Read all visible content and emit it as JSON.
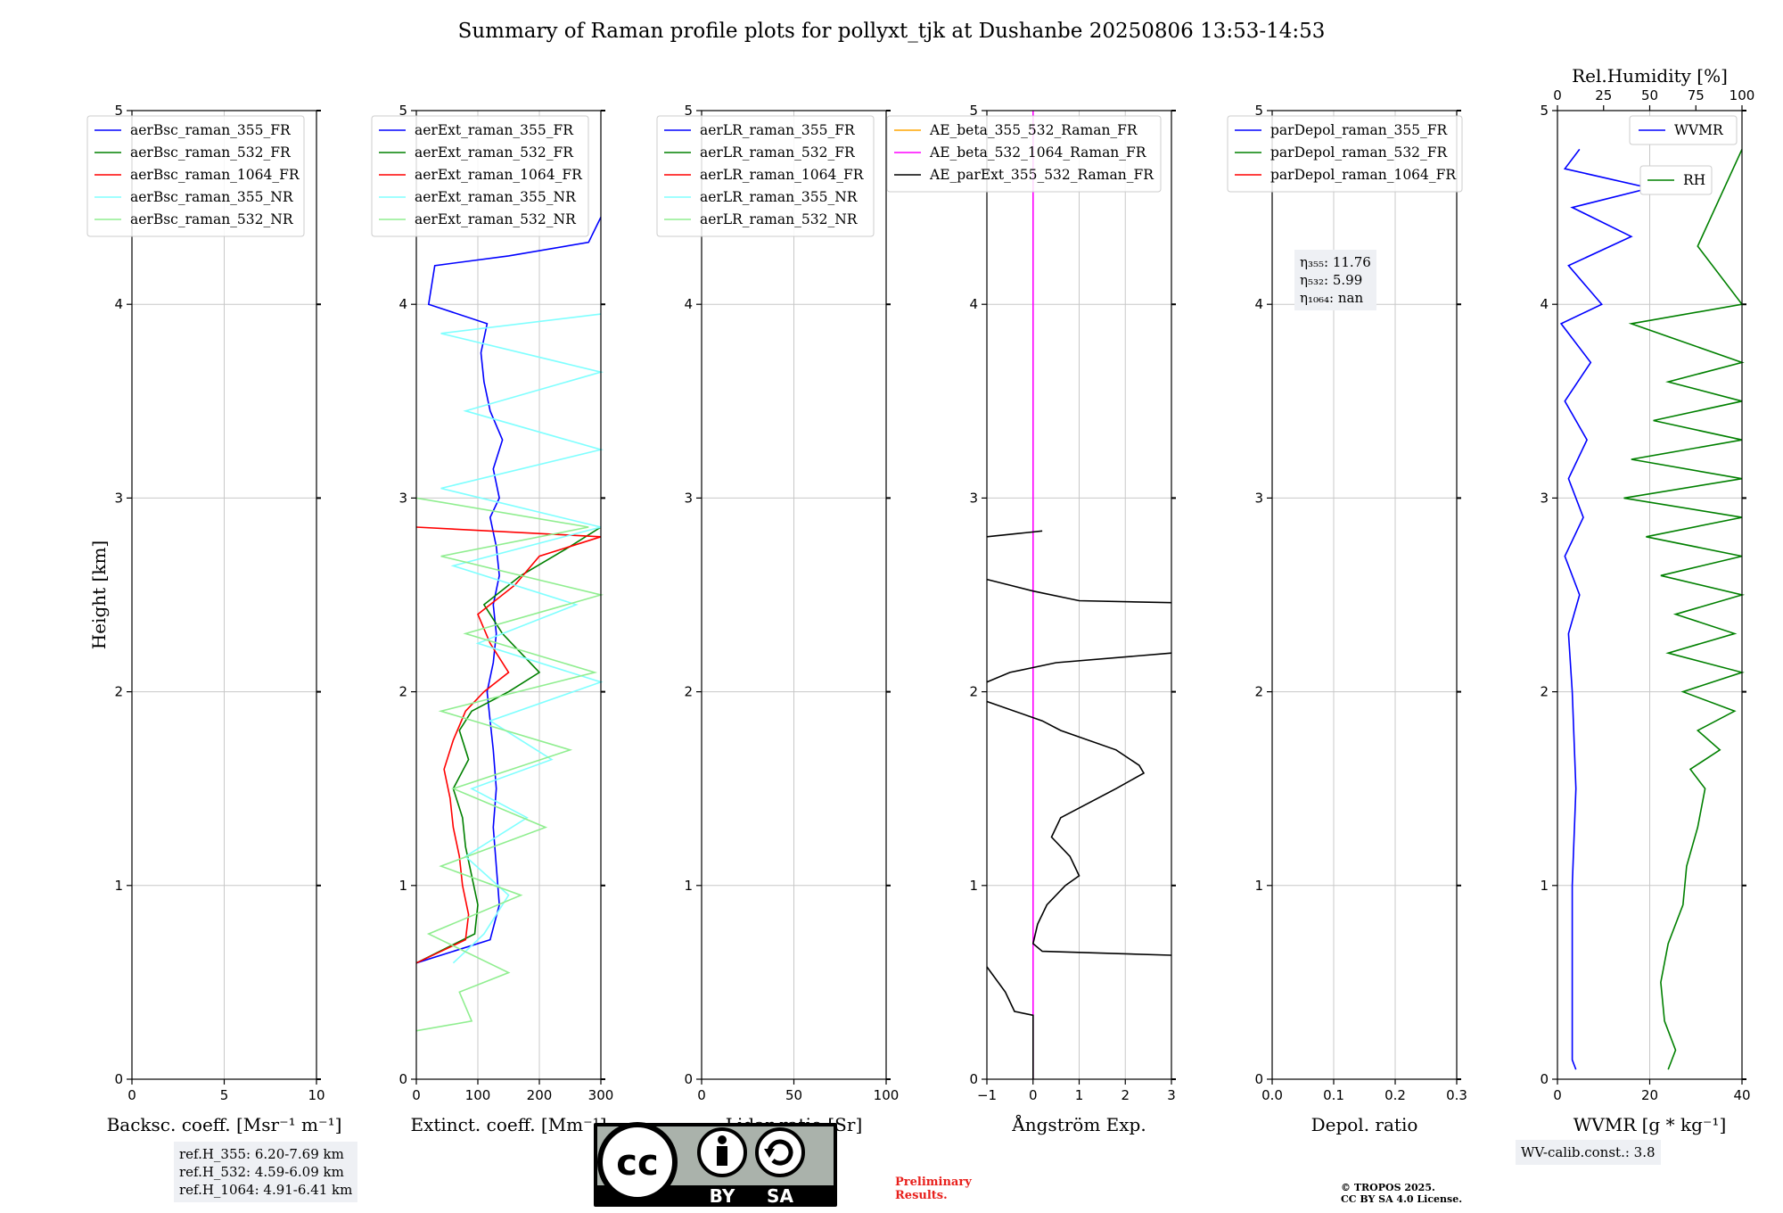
{
  "title": "Summary of Raman profile plots for pollyxt_tjk at Dushanbe 20250806 13:53-14:53",
  "ylabel": "Height [km]",
  "colors": {
    "blue": "#0000ff",
    "green": "#008000",
    "red": "#ff0000",
    "cyan": "#80ffff",
    "lightgreen": "#90ee90",
    "orange": "#ffa500",
    "magenta": "#ff00ff",
    "black": "#000000",
    "grid": "#c8c8c8"
  },
  "chart_data": [
    {
      "type": "line",
      "id": "bsc",
      "xlabel": "Backsc. coeff. [Msr⁻¹ m⁻¹]",
      "xlim": [
        0,
        10
      ],
      "ylim": [
        0,
        5
      ],
      "xticks": [
        "0",
        "5",
        "10"
      ],
      "legend": [
        "aerBsc_raman_355_FR",
        "aerBsc_raman_532_FR",
        "aerBsc_raman_1064_FR",
        "aerBsc_raman_355_NR",
        "aerBsc_raman_532_NR"
      ],
      "series": []
    },
    {
      "type": "line",
      "id": "ext",
      "xlabel": "Extinct. coeff. [Mm⁻¹]",
      "xlim": [
        0,
        300
      ],
      "ylim": [
        0,
        5
      ],
      "xticks": [
        "0",
        "100",
        "200",
        "300"
      ],
      "legend": [
        "aerExt_raman_355_FR",
        "aerExt_raman_532_FR",
        "aerExt_raman_1064_FR",
        "aerExt_raman_355_NR",
        "aerExt_raman_532_NR"
      ],
      "series": [
        {
          "name": "aerExt_raman_355_FR",
          "color": "blue",
          "points": [
            [
              0,
              0.6
            ],
            [
              120,
              0.72
            ],
            [
              135,
              0.9
            ],
            [
              130,
              1.1
            ],
            [
              125,
              1.3
            ],
            [
              130,
              1.5
            ],
            [
              125,
              1.7
            ],
            [
              120,
              1.85
            ],
            [
              115,
              2.0
            ],
            [
              125,
              2.15
            ],
            [
              130,
              2.3
            ],
            [
              125,
              2.45
            ],
            [
              135,
              2.6
            ],
            [
              130,
              2.75
            ],
            [
              120,
              2.9
            ],
            [
              135,
              3.0
            ],
            [
              125,
              3.15
            ],
            [
              140,
              3.3
            ],
            [
              120,
              3.45
            ],
            [
              110,
              3.6
            ],
            [
              105,
              3.75
            ],
            [
              115,
              3.9
            ],
            [
              20,
              4.0
            ],
            [
              30,
              4.2
            ],
            [
              150,
              4.25
            ],
            [
              280,
              4.32
            ],
            [
              300,
              4.45
            ]
          ]
        },
        {
          "name": "aerExt_raman_532_FR",
          "color": "green",
          "points": [
            [
              0,
              0.6
            ],
            [
              95,
              0.75
            ],
            [
              100,
              0.9
            ],
            [
              90,
              1.05
            ],
            [
              80,
              1.2
            ],
            [
              75,
              1.35
            ],
            [
              60,
              1.5
            ],
            [
              85,
              1.65
            ],
            [
              70,
              1.8
            ],
            [
              90,
              1.9
            ],
            [
              150,
              2.0
            ],
            [
              200,
              2.1
            ],
            [
              140,
              2.3
            ],
            [
              110,
              2.45
            ],
            [
              170,
              2.6
            ],
            [
              250,
              2.75
            ],
            [
              300,
              2.85
            ]
          ]
        },
        {
          "name": "aerExt_raman_1064_FR",
          "color": "red",
          "points": [
            [
              0,
              0.6
            ],
            [
              80,
              0.72
            ],
            [
              85,
              0.85
            ],
            [
              75,
              1.0
            ],
            [
              70,
              1.15
            ],
            [
              60,
              1.3
            ],
            [
              55,
              1.45
            ],
            [
              45,
              1.6
            ],
            [
              60,
              1.75
            ],
            [
              80,
              1.9
            ],
            [
              110,
              2.0
            ],
            [
              150,
              2.1
            ],
            [
              120,
              2.25
            ],
            [
              100,
              2.4
            ],
            [
              160,
              2.55
            ],
            [
              200,
              2.7
            ],
            [
              300,
              2.8
            ],
            [
              0,
              2.85
            ]
          ]
        },
        {
          "name": "aerExt_raman_355_NR",
          "color": "cyan",
          "points": [
            [
              60,
              0.6
            ],
            [
              110,
              0.75
            ],
            [
              150,
              0.95
            ],
            [
              80,
              1.15
            ],
            [
              180,
              1.35
            ],
            [
              90,
              1.5
            ],
            [
              220,
              1.65
            ],
            [
              120,
              1.85
            ],
            [
              300,
              2.05
            ],
            [
              100,
              2.25
            ],
            [
              260,
              2.45
            ],
            [
              60,
              2.65
            ],
            [
              300,
              2.85
            ],
            [
              40,
              3.05
            ],
            [
              300,
              3.25
            ],
            [
              80,
              3.45
            ],
            [
              300,
              3.65
            ],
            [
              40,
              3.85
            ],
            [
              300,
              3.95
            ]
          ]
        },
        {
          "name": "aerExt_raman_532_NR",
          "color": "lightgreen",
          "points": [
            [
              0,
              0.25
            ],
            [
              90,
              0.3
            ],
            [
              70,
              0.45
            ],
            [
              150,
              0.55
            ],
            [
              20,
              0.75
            ],
            [
              170,
              0.95
            ],
            [
              40,
              1.1
            ],
            [
              210,
              1.3
            ],
            [
              60,
              1.5
            ],
            [
              250,
              1.7
            ],
            [
              40,
              1.9
            ],
            [
              290,
              2.1
            ],
            [
              80,
              2.3
            ],
            [
              300,
              2.5
            ],
            [
              40,
              2.7
            ],
            [
              280,
              2.85
            ],
            [
              0,
              3.0
            ]
          ]
        }
      ]
    },
    {
      "type": "line",
      "id": "lr",
      "xlabel": "Lidar ratio [Sr]",
      "xlim": [
        0,
        120
      ],
      "ylim": [
        0,
        5
      ],
      "xticks": [
        "0",
        "50",
        "100"
      ],
      "legend": [
        "aerLR_raman_355_FR",
        "aerLR_raman_532_FR",
        "aerLR_raman_1064_FR",
        "aerLR_raman_355_NR",
        "aerLR_raman_532_NR"
      ],
      "series": []
    },
    {
      "type": "line",
      "id": "ae",
      "xlabel": "Ångström Exp.",
      "xlim": [
        -1,
        3
      ],
      "ylim": [
        0,
        5
      ],
      "xticks": [
        "−1",
        "0",
        "1",
        "2",
        "3"
      ],
      "legend": [
        "AE_beta_355_532_Raman_FR",
        "AE_beta_532_1064_Raman_FR",
        "AE_parExt_355_532_Raman_FR"
      ],
      "series": [
        {
          "name": "AE_beta_532_1064_Raman_FR",
          "color": "magenta",
          "points": [
            [
              0,
              0
            ],
            [
              0,
              5
            ]
          ]
        },
        {
          "name": "AE_parExt_355_532_Raman_FR",
          "color": "black",
          "points": [
            [
              0,
              0
            ],
            [
              0,
              0.33
            ],
            [
              -0.4,
              0.35
            ],
            [
              -0.6,
              0.45
            ],
            [
              -1,
              0.58
            ]
          ]
        },
        {
          "name": "AE_parExt_355_532_Raman_FR_b",
          "color": "black",
          "points": [
            [
              3,
              0.64
            ],
            [
              0.2,
              0.66
            ],
            [
              0,
              0.7
            ],
            [
              0.1,
              0.8
            ],
            [
              0.3,
              0.9
            ],
            [
              0.7,
              1.0
            ],
            [
              1.0,
              1.05
            ],
            [
              0.8,
              1.15
            ],
            [
              0.4,
              1.25
            ],
            [
              0.6,
              1.35
            ],
            [
              1.0,
              1.4
            ],
            [
              1.8,
              1.5
            ],
            [
              2.4,
              1.58
            ],
            [
              2.3,
              1.62
            ],
            [
              1.8,
              1.7
            ],
            [
              0.6,
              1.8
            ],
            [
              0.2,
              1.85
            ],
            [
              -1,
              1.95
            ]
          ]
        },
        {
          "name": "AE_parExt_355_532_Raman_FR_c",
          "color": "black",
          "points": [
            [
              -1,
              2.05
            ],
            [
              -0.5,
              2.1
            ],
            [
              0.5,
              2.15
            ],
            [
              3,
              2.2
            ]
          ]
        },
        {
          "name": "AE_parExt_355_532_Raman_FR_d",
          "color": "black",
          "points": [
            [
              -1,
              2.58
            ],
            [
              -0.5,
              2.55
            ],
            [
              0,
              2.52
            ],
            [
              1,
              2.47
            ],
            [
              3,
              2.46
            ]
          ]
        },
        {
          "name": "AE_parExt_355_532_Raman_FR_e",
          "color": "black",
          "points": [
            [
              -1,
              2.8
            ],
            [
              -0.2,
              2.82
            ],
            [
              0.2,
              2.83
            ]
          ]
        }
      ]
    },
    {
      "type": "line",
      "id": "depol",
      "xlabel": "Depol. ratio",
      "xlim": [
        0,
        0.3
      ],
      "ylim": [
        0,
        5
      ],
      "xticks": [
        "0.0",
        "0.1",
        "0.2",
        "0.3"
      ],
      "legend": [
        "parDepol_raman_355_FR",
        "parDepol_raman_532_FR",
        "parDepol_raman_1064_FR"
      ],
      "series": []
    },
    {
      "type": "line",
      "id": "wv",
      "xlabel": "WVMR [g * kg⁻¹]",
      "x2label": "Rel.Humidity [%]",
      "xlim": [
        0,
        50
      ],
      "ylim": [
        0,
        5
      ],
      "xticks": [
        "0",
        "20",
        "40"
      ],
      "x2ticks": [
        "0",
        "25",
        "50",
        "75",
        "100"
      ],
      "legend": [
        "WVMR",
        "RH"
      ],
      "series": [
        {
          "name": "WVMR",
          "color": "blue",
          "points": [
            [
              5,
              0.05
            ],
            [
              4,
              0.1
            ],
            [
              4,
              0.5
            ],
            [
              4,
              1.0
            ],
            [
              5,
              1.5
            ],
            [
              4,
              2.0
            ],
            [
              3,
              2.3
            ],
            [
              6,
              2.5
            ],
            [
              2,
              2.7
            ],
            [
              7,
              2.9
            ],
            [
              3,
              3.1
            ],
            [
              8,
              3.3
            ],
            [
              2,
              3.5
            ],
            [
              9,
              3.7
            ],
            [
              1,
              3.9
            ],
            [
              12,
              4.0
            ],
            [
              3,
              4.2
            ],
            [
              20,
              4.35
            ],
            [
              4,
              4.5
            ],
            [
              25,
              4.6
            ],
            [
              2,
              4.7
            ],
            [
              6,
              4.8
            ]
          ]
        },
        {
          "name": "RH",
          "color": "green",
          "points": [
            [
              30,
              0.05
            ],
            [
              32,
              0.15
            ],
            [
              29,
              0.3
            ],
            [
              28,
              0.5
            ],
            [
              30,
              0.7
            ],
            [
              34,
              0.9
            ],
            [
              35,
              1.1
            ],
            [
              38,
              1.3
            ],
            [
              40,
              1.5
            ],
            [
              36,
              1.6
            ],
            [
              44,
              1.7
            ],
            [
              38,
              1.8
            ],
            [
              48,
              1.9
            ],
            [
              34,
              2.0
            ],
            [
              50,
              2.1
            ],
            [
              30,
              2.2
            ],
            [
              48,
              2.3
            ],
            [
              32,
              2.4
            ],
            [
              50,
              2.5
            ],
            [
              28,
              2.6
            ],
            [
              50,
              2.7
            ],
            [
              24,
              2.8
            ],
            [
              50,
              2.9
            ],
            [
              18,
              3.0
            ],
            [
              50,
              3.1
            ],
            [
              20,
              3.2
            ],
            [
              50,
              3.3
            ],
            [
              26,
              3.4
            ],
            [
              50,
              3.5
            ],
            [
              30,
              3.6
            ],
            [
              50,
              3.7
            ],
            [
              20,
              3.9
            ],
            [
              50,
              4.0
            ],
            [
              38,
              4.3
            ],
            [
              50,
              4.8
            ]
          ]
        }
      ]
    }
  ],
  "panels_ylabel_ticks": [
    "0",
    "1",
    "2",
    "3",
    "4",
    "5"
  ],
  "eta": {
    "l355": "η₃₅₅: 11.76",
    "l532": "η₅₃₂: 5.99",
    "l1064": "η₁₀₆₄: nan"
  },
  "refH": {
    "l355": "ref.H_355: 6.20-7.69 km",
    "l532": "ref.H_532: 4.59-6.09 km",
    "l1064": "ref.H_1064: 4.91-6.41 km"
  },
  "wvcalib": "WV-calib.const.: 3.8",
  "prelim": {
    "l1": "Preliminary",
    "l2": "Results."
  },
  "copyright": {
    "l1": "© TROPOS 2025.",
    "l2": "CC BY SA 4.0 License."
  },
  "cc": {
    "cc": "cc",
    "by": "BY",
    "sa": "SA"
  }
}
